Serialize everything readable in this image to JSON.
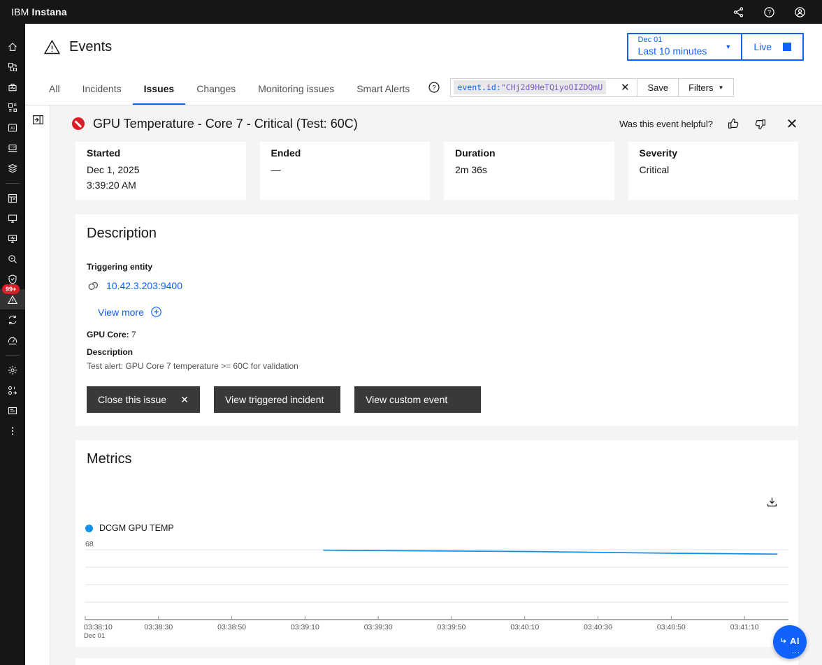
{
  "topbar": {
    "brand_prefix": "IBM",
    "brand_name": "Instana"
  },
  "header": {
    "title": "Events",
    "time_picker": {
      "date": "Dec 01",
      "range": "Last 10 minutes"
    },
    "live_label": "Live"
  },
  "tabs": [
    {
      "label": "All",
      "active": false
    },
    {
      "label": "Incidents",
      "active": false
    },
    {
      "label": "Issues",
      "active": true
    },
    {
      "label": "Changes",
      "active": false
    },
    {
      "label": "Monitoring issues",
      "active": false
    },
    {
      "label": "Smart Alerts",
      "active": false
    }
  ],
  "filter_bar": {
    "query_key": "event.id:",
    "query_value": "\"CHj2d9HeTQiyoOIZDQmU",
    "save_label": "Save",
    "filters_label": "Filters"
  },
  "event_panel": {
    "title": "GPU Temperature - Core 7 - Critical (Test: 60C)",
    "helpful_prompt": "Was this event helpful?"
  },
  "summary_cards": [
    {
      "label": "Started",
      "lines": [
        "Dec 1, 2025",
        "3:39:20 AM"
      ]
    },
    {
      "label": "Ended",
      "lines": [
        "—"
      ]
    },
    {
      "label": "Duration",
      "lines": [
        "2m 36s"
      ]
    },
    {
      "label": "Severity",
      "lines": [
        "Critical"
      ]
    }
  ],
  "description_section": {
    "heading": "Description",
    "triggering_entity_label": "Triggering entity",
    "entity_link": "10.42.3.203:9400",
    "view_more_label": "View more",
    "gpu_core_label": "GPU Core:",
    "gpu_core_value": "7",
    "description_label": "Description",
    "description_text": "Test alert: GPU Core 7 temperature >= 60C for validation",
    "actions": [
      {
        "label": "Close this issue",
        "close_icon": true
      },
      {
        "label": "View triggered incident",
        "close_icon": false
      },
      {
        "label": "View custom event",
        "close_icon": false
      }
    ]
  },
  "metrics_section": {
    "heading": "Metrics"
  },
  "chart_data": {
    "type": "line",
    "title": "DCGM GPU TEMP",
    "legend": [
      {
        "label": "DCGM GPU TEMP",
        "color": "#1192e8"
      }
    ],
    "legend_position": "top-left",
    "grid": true,
    "ylim": [
      60,
      68
    ],
    "y_top_label": "68",
    "y_gridline_values": [
      68,
      66,
      64,
      62
    ],
    "x_axis": {
      "start": "03:38:10",
      "end": "03:41:22",
      "date_label": "Dec 01"
    },
    "x_ticks": [
      "03:38:10",
      "03:38:30",
      "03:38:50",
      "03:39:10",
      "03:39:30",
      "03:39:50",
      "03:40:10",
      "03:40:30",
      "03:40:50",
      "03:41:10"
    ],
    "series": [
      {
        "name": "DCGM GPU TEMP",
        "color": "#1192e8",
        "points": [
          {
            "t": "03:39:15",
            "v": 67.95
          },
          {
            "t": "03:39:30",
            "v": 67.9
          },
          {
            "t": "03:39:50",
            "v": 67.85
          },
          {
            "t": "03:40:10",
            "v": 67.8
          },
          {
            "t": "03:40:30",
            "v": 67.7
          },
          {
            "t": "03:40:50",
            "v": 67.6
          },
          {
            "t": "03:41:05",
            "v": 67.55
          },
          {
            "t": "03:41:19",
            "v": 67.5
          }
        ]
      }
    ]
  },
  "sidebar": {
    "items": [
      {
        "name": "home-icon",
        "icon": "home"
      },
      {
        "name": "infrastructure-icon",
        "icon": "infrastructure"
      },
      {
        "name": "applications-icon",
        "icon": "applications"
      },
      {
        "name": "platforms-icon",
        "icon": "platforms"
      },
      {
        "name": "ai-workloads-icon",
        "icon": "ai"
      },
      {
        "name": "websites-icon",
        "icon": "websites"
      },
      {
        "name": "service-levels-icon",
        "icon": "stack"
      },
      {
        "type": "divider"
      },
      {
        "name": "dashboards-icon",
        "icon": "dashboards"
      },
      {
        "name": "infrastructure-monitoring-icon",
        "icon": "monitor"
      },
      {
        "name": "synthetic-monitoring-icon",
        "icon": "synthetic"
      },
      {
        "name": "analytics-icon",
        "icon": "analytics"
      },
      {
        "name": "security-icon",
        "icon": "security"
      },
      {
        "name": "events-icon",
        "icon": "events",
        "active": true,
        "badge": "99+"
      },
      {
        "name": "automation-icon",
        "icon": "automation"
      },
      {
        "name": "self-monitoring-icon",
        "icon": "gauge"
      },
      {
        "type": "divider"
      },
      {
        "name": "settings-icon",
        "icon": "settings"
      },
      {
        "name": "feature-flags-icon",
        "icon": "zeroone"
      },
      {
        "name": "whats-new-icon",
        "icon": "notes"
      },
      {
        "name": "more-menu-icon",
        "icon": "overflow"
      }
    ]
  },
  "fab": {
    "label": "AI"
  },
  "colors": {
    "accent": "#0f62fe",
    "critical": "#da1e28",
    "chart_line": "#1192e8",
    "topbar_bg": "#161616",
    "card_bg": "#ffffff",
    "page_bg": "#f4f4f4"
  }
}
